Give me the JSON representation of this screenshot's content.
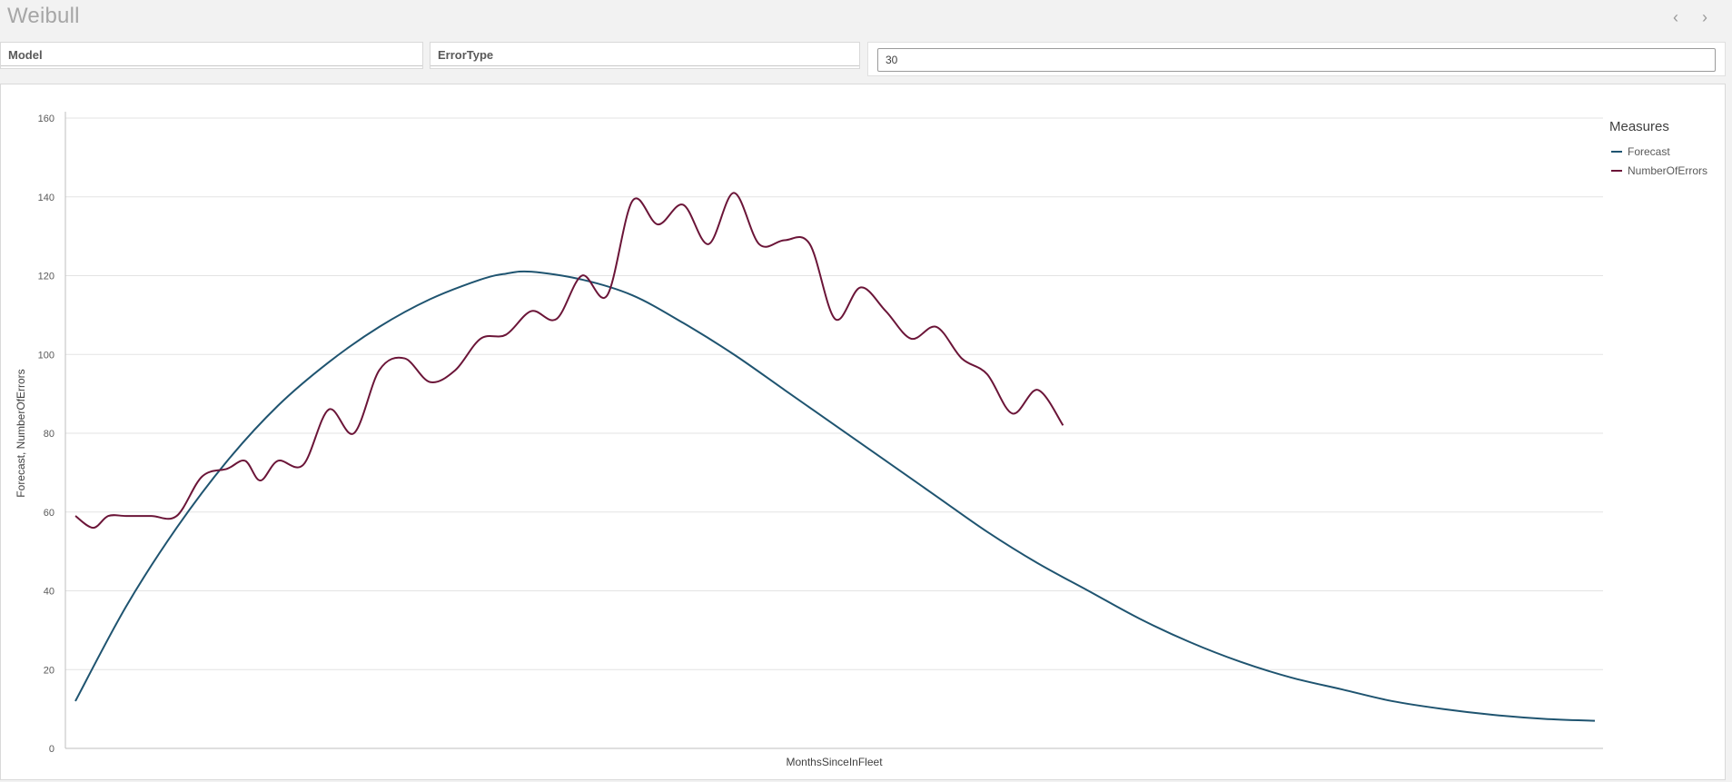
{
  "app": {
    "title": "Weibull"
  },
  "nav": {
    "prev_icon": "chevron-left-icon",
    "next_icon": "chevron-right-icon",
    "prev_glyph": "‹",
    "next_glyph": "›"
  },
  "filters": {
    "model_label": "Model",
    "errortype_label": "ErrorType"
  },
  "input": {
    "value": "30"
  },
  "colors": {
    "forecast": "#1f5470",
    "errors": "#6b1538",
    "grid": "#e3e3e3",
    "axis": "#bfbfbf"
  },
  "chart_data": {
    "type": "line",
    "xlabel": "MonthsSinceInFleet",
    "ylabel": "Forecast, NumberOfErrors",
    "ylim": [
      0,
      160
    ],
    "yticks": [
      0,
      20,
      40,
      60,
      80,
      100,
      120,
      140,
      160
    ],
    "xlim": [
      0,
      60
    ],
    "grid": true,
    "legend": {
      "title": "Measures",
      "placement": "top-right"
    },
    "series": [
      {
        "name": "Forecast",
        "x": [
          0,
          2,
          4,
          6,
          8,
          10,
          12,
          14,
          16,
          17,
          18,
          20,
          22,
          24,
          26,
          28,
          30,
          32,
          34,
          36,
          38,
          40,
          42,
          44,
          46,
          48,
          50,
          52,
          54,
          56,
          58,
          60
        ],
        "y": [
          12,
          36,
          56,
          73,
          87,
          98,
          107,
          114,
          119,
          120.5,
          121,
          119,
          115,
          108,
          100,
          91,
          82,
          73,
          64,
          55,
          47,
          40,
          33,
          27,
          22,
          18,
          15,
          12,
          10,
          8.5,
          7.5,
          7
        ]
      },
      {
        "name": "NumberOfErrors",
        "x": [
          0,
          0.7,
          1.3,
          2,
          3,
          4,
          5,
          6,
          6.7,
          7.3,
          8,
          9,
          10,
          11,
          12,
          13,
          14,
          15,
          16,
          17,
          18,
          19,
          20,
          21,
          22,
          23,
          24,
          25,
          26,
          27,
          28,
          29,
          30,
          31,
          32,
          33,
          34,
          35,
          36,
          37,
          38,
          39
        ],
        "y": [
          59,
          56,
          59,
          59,
          59,
          59,
          69,
          71,
          73,
          68,
          73,
          72,
          86,
          80,
          96,
          99,
          93,
          96,
          104,
          105,
          111,
          109,
          120,
          115,
          139,
          133,
          138,
          128,
          141,
          128,
          129,
          128,
          109,
          117,
          111,
          104,
          107,
          99,
          95,
          85,
          91,
          82
        ]
      }
    ]
  }
}
